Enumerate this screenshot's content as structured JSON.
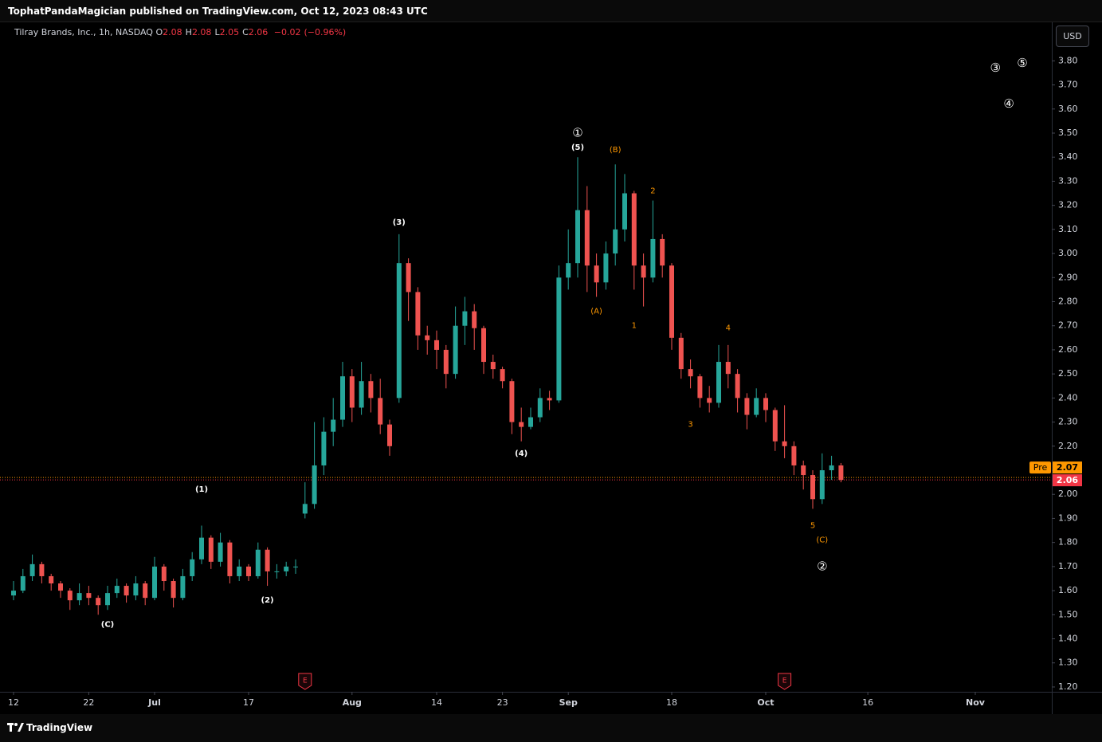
{
  "header": "TophatPandaMagician published on TradingView.com, Oct 12, 2023 08:43 UTC",
  "footer": "TradingView",
  "currency": "USD",
  "chart_data": {
    "type": "candlestick",
    "symbol_title": "Tilray Brands, Inc., 1h, NASDAQ",
    "ohlc": [
      {
        "label": "O",
        "value": 2.08
      },
      {
        "label": "H",
        "value": 2.08
      },
      {
        "label": "L",
        "value": 2.05
      },
      {
        "label": "C",
        "value": 2.06
      }
    ],
    "change": {
      "value": -0.02,
      "label": "−0.02"
    },
    "change_percent": {
      "value": -0.96,
      "label": "(−0.96%)"
    },
    "up_color": "#26a69a",
    "down_color": "#ef5350",
    "categories": [
      "Jun 12",
      "Jun 13",
      "Jun 14",
      "Jun 15",
      "Jun 16",
      "Jun 19",
      "Jun 20",
      "Jun 21",
      "Jun 22",
      "Jun 23",
      "Jun 26",
      "Jun 27",
      "Jun 28",
      "Jun 29",
      "Jun 30",
      "Jul 3",
      "Jul 4",
      "Jul 5",
      "Jul 6",
      "Jul 7",
      "Jul 10",
      "Jul 11",
      "Jul 12",
      "Jul 13",
      "Jul 14",
      "Jul 17",
      "Jul 18",
      "Jul 19",
      "Jul 20",
      "Jul 21",
      "Jul 24",
      "Jul 25",
      "Jul 26",
      "Jul 27",
      "Jul 28",
      "Jul 31",
      "Aug 1",
      "Aug 2",
      "Aug 3",
      "Aug 4",
      "Aug 7",
      "Aug 8",
      "Aug 9",
      "Aug 10",
      "Aug 11",
      "Aug 14",
      "Aug 15",
      "Aug 16",
      "Aug 17",
      "Aug 18",
      "Aug 21",
      "Aug 22",
      "Aug 23",
      "Aug 24",
      "Aug 25",
      "Aug 28",
      "Aug 29",
      "Aug 30",
      "Aug 31",
      "Sep 1",
      "Sep 4",
      "Sep 5",
      "Sep 6",
      "Sep 7",
      "Sep 8",
      "Sep 11",
      "Sep 12",
      "Sep 13",
      "Sep 14",
      "Sep 15",
      "Sep 18",
      "Sep 19",
      "Sep 20",
      "Sep 21",
      "Sep 22",
      "Sep 25",
      "Sep 26",
      "Sep 27",
      "Sep 28",
      "Sep 29",
      "Oct 2",
      "Oct 3",
      "Oct 4",
      "Oct 5",
      "Oct 6",
      "Oct 9",
      "Oct 10",
      "Oct 11",
      "Oct 12"
    ],
    "open": [
      1.58,
      1.6,
      1.66,
      1.71,
      1.66,
      1.63,
      1.6,
      1.56,
      1.59,
      1.57,
      1.54,
      1.59,
      1.62,
      1.58,
      1.63,
      1.57,
      1.7,
      1.64,
      1.57,
      1.66,
      1.73,
      1.82,
      1.72,
      1.8,
      1.66,
      1.7,
      1.66,
      1.77,
      1.68,
      1.68,
      1.7,
      1.92,
      1.96,
      2.12,
      2.26,
      2.31,
      2.49,
      2.36,
      2.47,
      2.4,
      2.29,
      2.4,
      2.96,
      2.84,
      2.66,
      2.64,
      2.6,
      2.5,
      2.7,
      2.76,
      2.69,
      2.55,
      2.52,
      2.47,
      2.3,
      2.28,
      2.32,
      2.4,
      2.39,
      2.9,
      2.96,
      3.18,
      2.95,
      2.88,
      3.0,
      3.1,
      3.25,
      2.95,
      2.9,
      3.06,
      2.95,
      2.65,
      2.52,
      2.49,
      2.4,
      2.38,
      2.55,
      2.5,
      2.4,
      2.33,
      2.4,
      2.35,
      2.22,
      2.2,
      2.12,
      2.08,
      1.98,
      2.1,
      2.12
    ],
    "high": [
      1.64,
      1.69,
      1.75,
      1.72,
      1.67,
      1.64,
      1.61,
      1.63,
      1.62,
      1.58,
      1.62,
      1.65,
      1.63,
      1.66,
      1.64,
      1.74,
      1.71,
      1.65,
      1.69,
      1.76,
      1.87,
      1.83,
      1.84,
      1.81,
      1.73,
      1.71,
      1.8,
      1.78,
      1.71,
      1.72,
      1.73,
      2.05,
      2.3,
      2.32,
      2.4,
      2.55,
      2.52,
      2.55,
      2.5,
      2.48,
      2.31,
      3.08,
      2.98,
      2.86,
      2.7,
      2.68,
      2.62,
      2.78,
      2.82,
      2.79,
      2.7,
      2.58,
      2.53,
      2.48,
      2.36,
      2.36,
      2.44,
      2.43,
      2.95,
      3.1,
      3.4,
      3.28,
      3.0,
      3.05,
      3.37,
      3.33,
      3.26,
      3.0,
      3.22,
      3.08,
      2.96,
      2.67,
      2.56,
      2.5,
      2.45,
      2.62,
      2.62,
      2.52,
      2.42,
      2.44,
      2.42,
      2.36,
      2.37,
      2.22,
      2.14,
      2.1,
      2.17,
      2.16,
      2.13
    ],
    "low": [
      1.56,
      1.59,
      1.64,
      1.63,
      1.6,
      1.57,
      1.52,
      1.54,
      1.54,
      1.5,
      1.52,
      1.57,
      1.55,
      1.56,
      1.54,
      1.56,
      1.6,
      1.53,
      1.56,
      1.64,
      1.71,
      1.69,
      1.7,
      1.63,
      1.64,
      1.64,
      1.65,
      1.62,
      1.65,
      1.66,
      1.67,
      1.9,
      1.94,
      2.08,
      2.2,
      2.28,
      2.3,
      2.33,
      2.34,
      2.25,
      2.16,
      2.38,
      2.72,
      2.6,
      2.58,
      2.52,
      2.44,
      2.48,
      2.62,
      2.6,
      2.5,
      2.48,
      2.44,
      2.25,
      2.22,
      2.27,
      2.3,
      2.35,
      2.38,
      2.85,
      2.9,
      2.84,
      2.82,
      2.85,
      2.95,
      3.05,
      2.85,
      2.78,
      2.88,
      2.9,
      2.6,
      2.48,
      2.44,
      2.36,
      2.34,
      2.36,
      2.44,
      2.34,
      2.27,
      2.32,
      2.3,
      2.18,
      2.15,
      2.08,
      2.02,
      1.94,
      1.96,
      2.06,
      2.05
    ],
    "close": [
      1.6,
      1.66,
      1.71,
      1.66,
      1.63,
      1.6,
      1.56,
      1.59,
      1.57,
      1.54,
      1.59,
      1.62,
      1.58,
      1.63,
      1.57,
      1.7,
      1.64,
      1.57,
      1.66,
      1.73,
      1.82,
      1.72,
      1.8,
      1.66,
      1.7,
      1.66,
      1.77,
      1.68,
      1.68,
      1.7,
      1.7,
      1.96,
      2.12,
      2.26,
      2.31,
      2.49,
      2.36,
      2.47,
      2.4,
      2.29,
      2.2,
      2.96,
      2.84,
      2.66,
      2.64,
      2.6,
      2.5,
      2.7,
      2.76,
      2.69,
      2.55,
      2.52,
      2.47,
      2.3,
      2.28,
      2.32,
      2.4,
      2.39,
      2.9,
      2.96,
      3.18,
      2.95,
      2.88,
      3.0,
      3.1,
      3.25,
      2.95,
      2.9,
      3.06,
      2.95,
      2.65,
      2.52,
      2.49,
      2.4,
      2.38,
      2.55,
      2.5,
      2.4,
      2.33,
      2.4,
      2.35,
      2.22,
      2.2,
      2.12,
      2.08,
      1.98,
      2.1,
      2.12,
      2.06
    ],
    "ylim": [
      1.18,
      3.96
    ],
    "yticks": [
      {
        "value": 1.2,
        "label": "1.20"
      },
      {
        "value": 1.3,
        "label": "1.30"
      },
      {
        "value": 1.4,
        "label": "1.40"
      },
      {
        "value": 1.5,
        "label": "1.50"
      },
      {
        "value": 1.6,
        "label": "1.60"
      },
      {
        "value": 1.7,
        "label": "1.70"
      },
      {
        "value": 1.8,
        "label": "1.80"
      },
      {
        "value": 1.9,
        "label": "1.90"
      },
      {
        "value": 2.0,
        "label": "2.00"
      },
      {
        "value": 2.1,
        "label": "2.10"
      },
      {
        "value": 2.2,
        "label": "2.20"
      },
      {
        "value": 2.3,
        "label": "2.30"
      },
      {
        "value": 2.4,
        "label": "2.40"
      },
      {
        "value": 2.5,
        "label": "2.50"
      },
      {
        "value": 2.6,
        "label": "2.60"
      },
      {
        "value": 2.7,
        "label": "2.70"
      },
      {
        "value": 2.8,
        "label": "2.80"
      },
      {
        "value": 2.9,
        "label": "2.90"
      },
      {
        "value": 3.0,
        "label": "3.00"
      },
      {
        "value": 3.1,
        "label": "3.10"
      },
      {
        "value": 3.2,
        "label": "3.20"
      },
      {
        "value": 3.3,
        "label": "3.30"
      },
      {
        "value": 3.4,
        "label": "3.40"
      },
      {
        "value": 3.5,
        "label": "3.50"
      },
      {
        "value": 3.6,
        "label": "3.60"
      },
      {
        "value": 3.7,
        "label": "3.70"
      },
      {
        "value": 3.8,
        "label": "3.80"
      }
    ],
    "xticks": [
      {
        "value": "Jun 12",
        "label": "12"
      },
      {
        "value": "Jun 22",
        "label": "22"
      },
      {
        "value": "Jul 3",
        "label": "Jul"
      },
      {
        "value": "Jul 17",
        "label": "17"
      },
      {
        "value": "Aug 1",
        "label": "Aug"
      },
      {
        "value": "Aug 14",
        "label": "14"
      },
      {
        "value": "Aug 23",
        "label": "23"
      },
      {
        "value": "Sep 1",
        "label": "Sep"
      },
      {
        "value": "Sep 18",
        "label": "18"
      },
      {
        "value": "Oct 2",
        "label": "Oct"
      },
      {
        "value": "Oct 16",
        "label": "16"
      },
      {
        "value": "Nov 1",
        "label": "Nov"
      }
    ],
    "last_price": 2.06,
    "last_color": "#f23645",
    "pre_price": 2.07,
    "pre_label": "Pre",
    "pre_color": "#ff9800",
    "events": [
      {
        "date": "Jul 25",
        "label": "E"
      },
      {
        "date": "Oct 4",
        "label": "E"
      }
    ],
    "annotations": [
      {
        "text": "(C)",
        "x": "Jun 26",
        "y": 1.46,
        "color": "#ffffff"
      },
      {
        "text": "(1)",
        "x": "Jul 10",
        "y": 2.02,
        "color": "#ffffff"
      },
      {
        "text": "(2)",
        "x": "Jul 19",
        "y": 1.56,
        "color": "#ffffff"
      },
      {
        "text": "(3)",
        "x": "Aug 8",
        "y": 3.13,
        "color": "#ffffff"
      },
      {
        "text": "(4)",
        "x": "Aug 25",
        "y": 2.17,
        "color": "#ffffff"
      },
      {
        "text": "(5)",
        "x": "Sep 4",
        "y": 3.44,
        "color": "#ffffff"
      },
      {
        "text": "①",
        "x": "Sep 4",
        "y": 3.5,
        "color": "#ffffff"
      },
      {
        "text": "(A)",
        "x": "Sep 6",
        "y": 2.76,
        "color": "#ff9800"
      },
      {
        "text": "(B)",
        "x": "Sep 8",
        "y": 3.43,
        "color": "#ff9800"
      },
      {
        "text": "1",
        "x": "Sep 12",
        "y": 2.7,
        "color": "#ff9800"
      },
      {
        "text": "2",
        "x": "Sep 14",
        "y": 3.26,
        "color": "#ff9800"
      },
      {
        "text": "3",
        "x": "Sep 20",
        "y": 2.29,
        "color": "#ff9800"
      },
      {
        "text": "4",
        "x": "Sep 26",
        "y": 2.69,
        "color": "#ff9800"
      },
      {
        "text": "5",
        "x": "Oct 9",
        "y": 1.87,
        "color": "#ff9800"
      },
      {
        "text": "(C)",
        "x": "Oct 10",
        "y": 1.81,
        "color": "#ff9800"
      },
      {
        "text": "②",
        "x": "Oct 10",
        "y": 1.7,
        "color": "#ffffff"
      },
      {
        "text": "③",
        "x": "Nov 4",
        "y": 3.77,
        "color": "#ffffff"
      },
      {
        "text": "④",
        "x": "Nov 6",
        "y": 3.62,
        "color": "#ffffff"
      },
      {
        "text": "⑤",
        "x": "Nov 8",
        "y": 3.79,
        "color": "#ffffff"
      }
    ]
  }
}
